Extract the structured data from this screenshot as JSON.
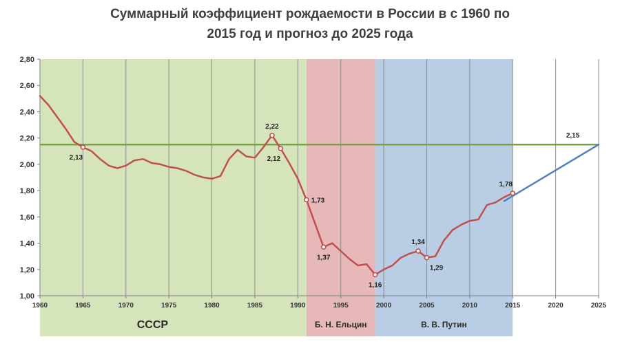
{
  "title_lines": [
    "Суммарный коэффициент рождаемости в России в с 1960 по",
    "2015 год и прогноз до 2025 года"
  ],
  "chart_data": {
    "type": "line",
    "title": "Суммарный коэффициент рождаемости в России в с 1960 по 2015 год и прогноз до 2025 года",
    "xlim": [
      1960,
      2025
    ],
    "ylim": [
      1.0,
      2.8
    ],
    "x_ticks": [
      "1960",
      "1965",
      "1970",
      "1975",
      "1980",
      "1985",
      "1990",
      "1995",
      "2000",
      "2005",
      "2010",
      "2015",
      "2020",
      "2025"
    ],
    "y_ticks": [
      "1,00",
      "1,20",
      "1,40",
      "1,60",
      "1,80",
      "2,00",
      "2,20",
      "2,40",
      "2,60",
      "2,80"
    ],
    "grid": {
      "vertical": true,
      "horizontal": false
    },
    "periods": [
      {
        "label": "СССР",
        "start": 1960,
        "end": 1991,
        "color": "#d6e4bc"
      },
      {
        "label": "Б. Н. Ельцин",
        "start": 1991,
        "end": 1999,
        "color": "#e6b8b7"
      },
      {
        "label": "В. В. Путин",
        "start": 1999,
        "end": 2015,
        "color": "#b9cde5"
      }
    ],
    "series": [
      {
        "color": "#c0504d",
        "x": [
          1960,
          1961,
          1962,
          1963,
          1964,
          1965,
          1966,
          1967,
          1968,
          1969,
          1970,
          1971,
          1972,
          1973,
          1974,
          1975,
          1976,
          1977,
          1978,
          1979,
          1980,
          1981,
          1982,
          1983,
          1984,
          1985,
          1986,
          1987,
          1988,
          1989,
          1990,
          1991,
          1992,
          1993,
          1994,
          1995,
          1996,
          1997,
          1998,
          1999,
          2000,
          2001,
          2002,
          2003,
          2004,
          2005,
          2006,
          2007,
          2008,
          2009,
          2010,
          2011,
          2012,
          2013,
          2014,
          2015
        ],
        "y": [
          2.52,
          2.45,
          2.36,
          2.27,
          2.17,
          2.13,
          2.1,
          2.04,
          1.99,
          1.97,
          1.99,
          2.03,
          2.04,
          2.01,
          2.0,
          1.98,
          1.97,
          1.95,
          1.92,
          1.9,
          1.89,
          1.91,
          2.04,
          2.11,
          2.06,
          2.05,
          2.13,
          2.22,
          2.12,
          2.01,
          1.89,
          1.73,
          1.55,
          1.37,
          1.4,
          1.34,
          1.28,
          1.23,
          1.24,
          1.16,
          1.2,
          1.23,
          1.29,
          1.32,
          1.34,
          1.29,
          1.3,
          1.42,
          1.5,
          1.54,
          1.57,
          1.58,
          1.69,
          1.71,
          1.75,
          1.78
        ]
      },
      {
        "color": "#4f81bd",
        "x": [
          2014,
          2025
        ],
        "y": [
          1.72,
          2.15
        ]
      }
    ],
    "reference_line": {
      "y": 2.15,
      "color": "#77a33c",
      "label": "2,15"
    },
    "point_labels": [
      {
        "x": 1965,
        "y": 2.13,
        "text": "2,13",
        "pos": "below-left"
      },
      {
        "x": 1987,
        "y": 2.22,
        "text": "2,22",
        "pos": "above"
      },
      {
        "x": 1988,
        "y": 2.12,
        "text": "2,12",
        "pos": "below-left"
      },
      {
        "x": 1991,
        "y": 1.73,
        "text": "1,73",
        "pos": "right"
      },
      {
        "x": 1993,
        "y": 1.37,
        "text": "1,37",
        "pos": "below"
      },
      {
        "x": 1999,
        "y": 1.16,
        "text": "1,16",
        "pos": "below"
      },
      {
        "x": 2004,
        "y": 1.34,
        "text": "1,34",
        "pos": "above"
      },
      {
        "x": 2005,
        "y": 1.29,
        "text": "1,29",
        "pos": "below-right"
      },
      {
        "x": 2015,
        "y": 1.78,
        "text": "1,78",
        "pos": "above-left"
      },
      {
        "x": 2022,
        "y": 2.15,
        "text": "2,15",
        "pos": "above"
      }
    ]
  }
}
